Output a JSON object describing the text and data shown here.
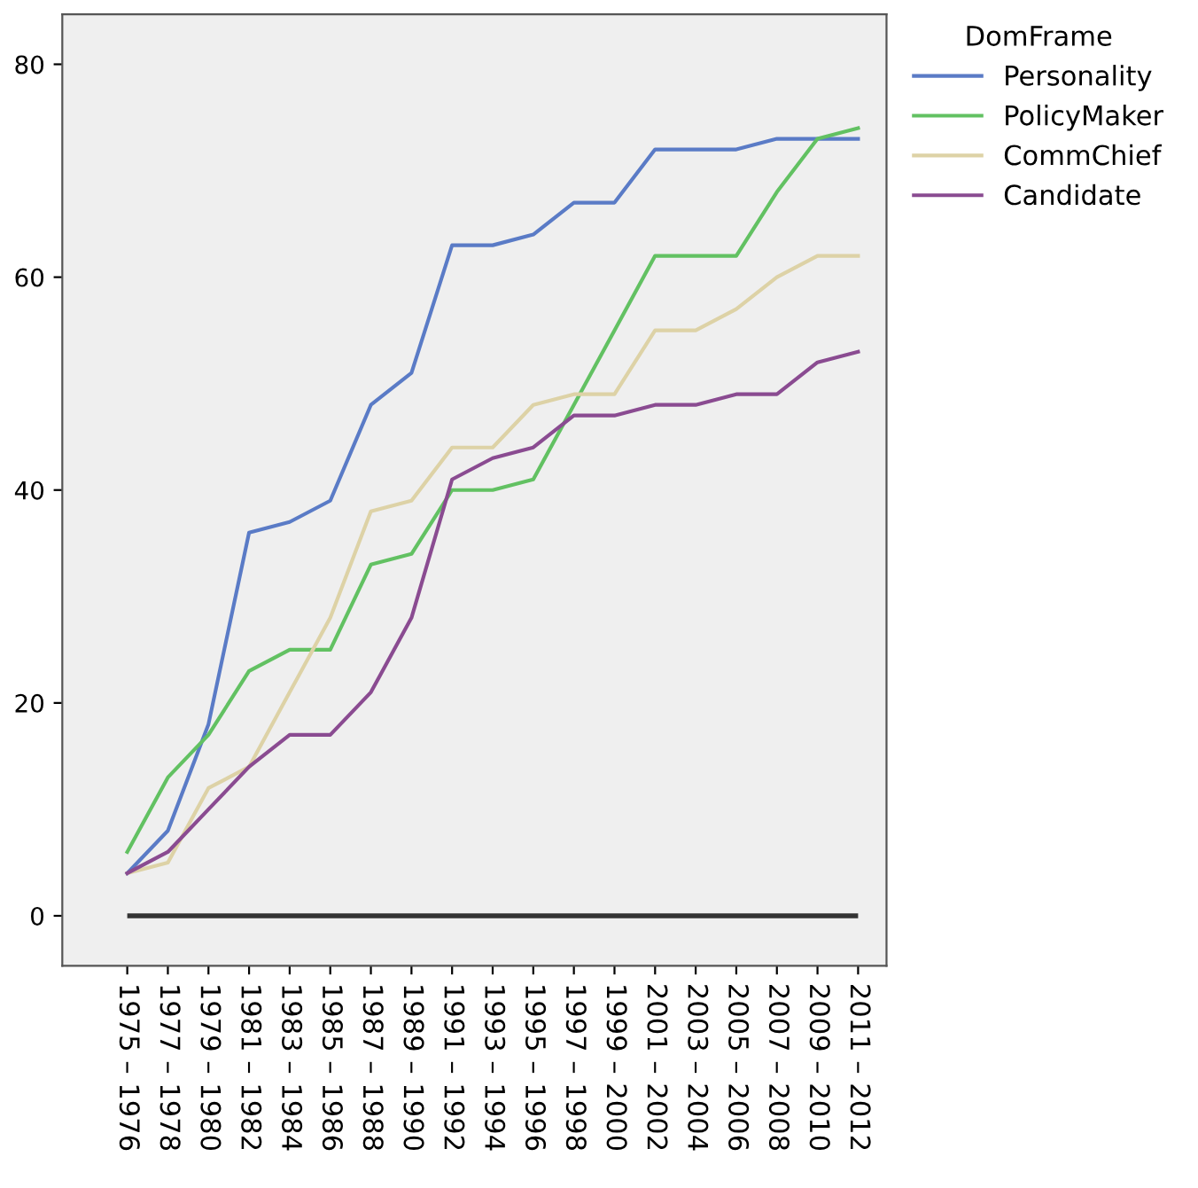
{
  "chart_data": {
    "type": "line",
    "categories": [
      "1975 – 1976",
      "1977 – 1978",
      "1979 – 1980",
      "1981 – 1982",
      "1983 – 1984",
      "1985 – 1986",
      "1987 – 1988",
      "1989 – 1990",
      "1991 – 1992",
      "1993 – 1994",
      "1995 – 1996",
      "1997 – 1998",
      "1999 – 2000",
      "2001 – 2002",
      "2003 – 2004",
      "2005 – 2006",
      "2007 – 2008",
      "2009 – 2010",
      "2011 – 2012"
    ],
    "series": [
      {
        "name": "Personality",
        "color": "#5a7bc6",
        "values": [
          4,
          8,
          18,
          36,
          37,
          39,
          48,
          51,
          63,
          63,
          64,
          67,
          67,
          72,
          72,
          72,
          73,
          73,
          73
        ]
      },
      {
        "name": "PolicyMaker",
        "color": "#62c162",
        "values": [
          6,
          13,
          17,
          23,
          25,
          25,
          33,
          34,
          40,
          40,
          41,
          48,
          55,
          62,
          62,
          62,
          68,
          73,
          74
        ]
      },
      {
        "name": "CommChief",
        "color": "#ddd2a6",
        "values": [
          4,
          5,
          12,
          14,
          21,
          28,
          38,
          39,
          44,
          44,
          48,
          49,
          49,
          55,
          55,
          57,
          60,
          62,
          62
        ]
      },
      {
        "name": "Candidate",
        "color": "#8a4b91",
        "values": [
          4,
          6,
          10,
          14,
          17,
          17,
          21,
          28,
          41,
          43,
          44,
          47,
          47,
          48,
          48,
          49,
          49,
          52,
          53
        ]
      }
    ],
    "legend_title": "DomFrame",
    "legend": "top right",
    "grid": false,
    "marker": "none",
    "line_style": "solid",
    "ylim": [
      -4.7,
      84.7
    ],
    "yticks": [
      0,
      20,
      40,
      60,
      80
    ],
    "ref_lines": [
      {
        "axis": "y",
        "value": 0,
        "color": "#333333"
      }
    ]
  }
}
